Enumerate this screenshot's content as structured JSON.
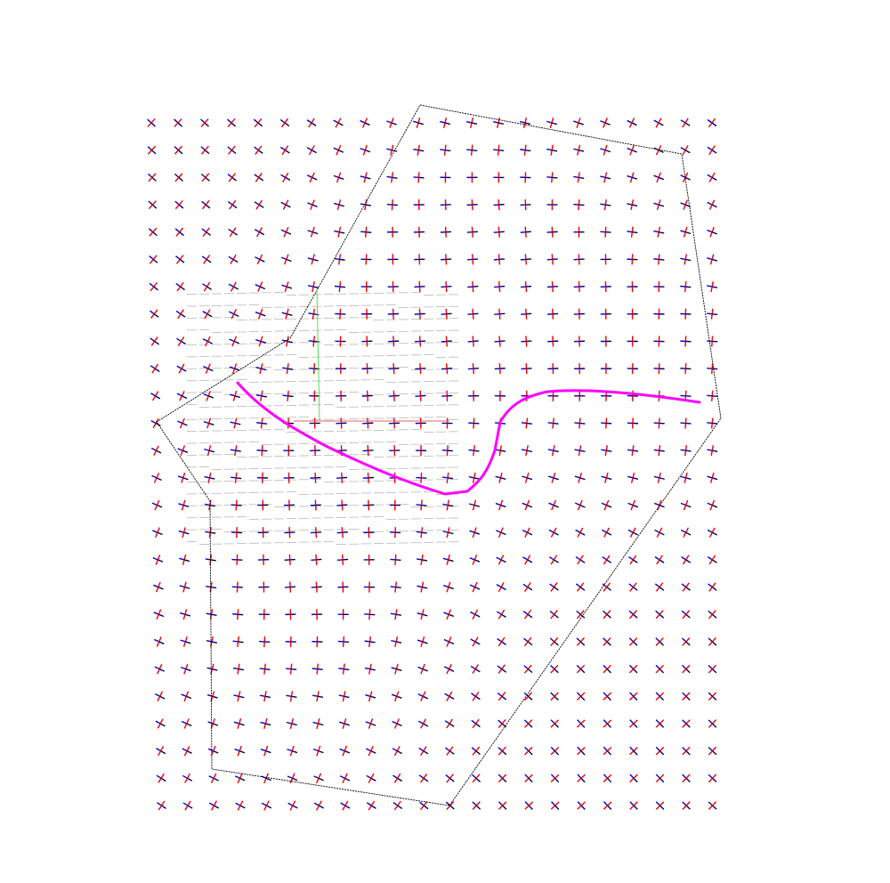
{
  "diagram": {
    "type": "vector-field-with-mesh",
    "title": "",
    "colors": {
      "background": "#ffffff",
      "cross_arm_a": "#0000dd",
      "cross_arm_b": "#ee0000",
      "cross_arm_dark": "#000000",
      "boundary": "#000000",
      "mesh": "#b8b8b8",
      "mesh_red_edge": "#e06060",
      "mesh_green_edge": "#55dd55",
      "path": "#ff00ff"
    },
    "grid": {
      "columns": 22,
      "rows": 26
    },
    "legend": "none",
    "axes": "none"
  }
}
